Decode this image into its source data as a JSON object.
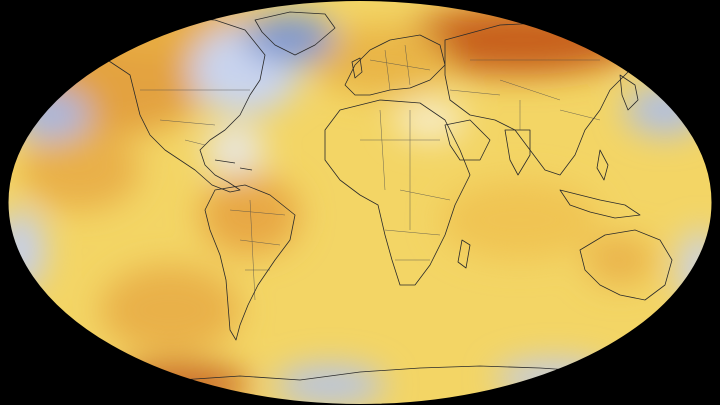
{
  "map": {
    "projection": "robinson",
    "background_color": "#000000",
    "coastline_color": "#2a2a2a",
    "color_scale": {
      "cold": "#7f98d0",
      "cool": "#c9d3ec",
      "neutral": "#f6f1d6",
      "warm": "#f5d15c",
      "hot": "#e7a53a",
      "hottest": "#c65d1c"
    }
  }
}
